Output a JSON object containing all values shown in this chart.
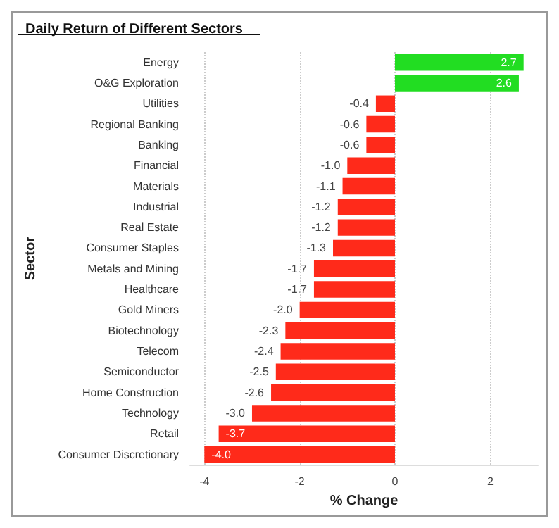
{
  "chart_data": {
    "type": "bar",
    "orientation": "horizontal",
    "title": "Daily Return of Different Sectors",
    "xlabel": "% Change",
    "ylabel": "Sector",
    "categories": [
      "Energy",
      "O&G Exploration",
      "Utilities",
      "Regional Banking",
      "Banking",
      "Financial",
      "Materials",
      "Industrial",
      "Real Estate",
      "Consumer Staples",
      "Metals and Mining",
      "Healthcare",
      "Gold Miners",
      "Biotechnology",
      "Telecom",
      "Semiconductor",
      "Home Construction",
      "Technology",
      "Retail",
      "Consumer Discretionary"
    ],
    "values": [
      2.7,
      2.6,
      -0.4,
      -0.6,
      -0.6,
      -1.0,
      -1.1,
      -1.2,
      -1.2,
      -1.3,
      -1.7,
      -1.7,
      -2.0,
      -2.3,
      -2.4,
      -2.5,
      -2.6,
      -3.0,
      -3.7,
      -4.0
    ],
    "value_labels": [
      "2.7",
      "2.6",
      "-0.4",
      "-0.6",
      "-0.6",
      "-1.0",
      "-1.1",
      "-1.2",
      "-1.2",
      "-1.3",
      "-1.7",
      "-1.7",
      "-2.0",
      "-2.3",
      "-2.4",
      "-2.5",
      "-2.6",
      "-3.0",
      "-3.7",
      "-4.0"
    ],
    "colors": [
      "#22dd22",
      "#22dd22",
      "#ff2a1a",
      "#ff2a1a",
      "#ff2a1a",
      "#ff2a1a",
      "#ff2a1a",
      "#ff2a1a",
      "#ff2a1a",
      "#ff2a1a",
      "#ff2a1a",
      "#ff2a1a",
      "#ff2a1a",
      "#ff2a1a",
      "#ff2a1a",
      "#ff2a1a",
      "#ff2a1a",
      "#ff2a1a",
      "#ff2a1a",
      "#ff2a1a"
    ],
    "xlim": [
      -4.3,
      3.0
    ],
    "xticks": [
      -4,
      -2,
      0,
      2
    ],
    "grid": "x"
  }
}
